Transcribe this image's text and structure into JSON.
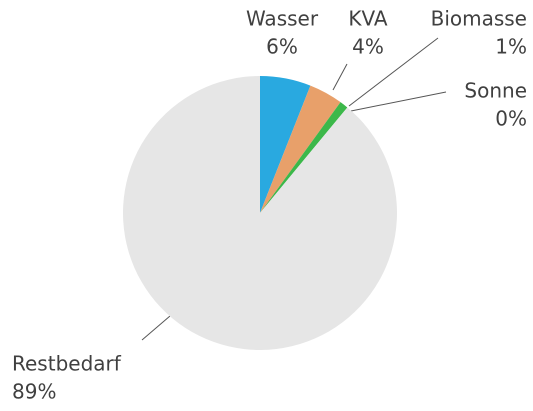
{
  "chart_data": {
    "type": "pie",
    "categories": [
      "Wasser",
      "KVA",
      "Biomasse",
      "Sonne",
      "Restbedarf"
    ],
    "values": [
      6,
      4,
      1,
      0,
      89
    ],
    "value_labels": [
      "6%",
      "4%",
      "1%",
      "0%",
      "89%"
    ],
    "colors": [
      "#29a9e0",
      "#e8a06a",
      "#3cb84a",
      "#c8d400",
      "#e6e6e6"
    ]
  }
}
